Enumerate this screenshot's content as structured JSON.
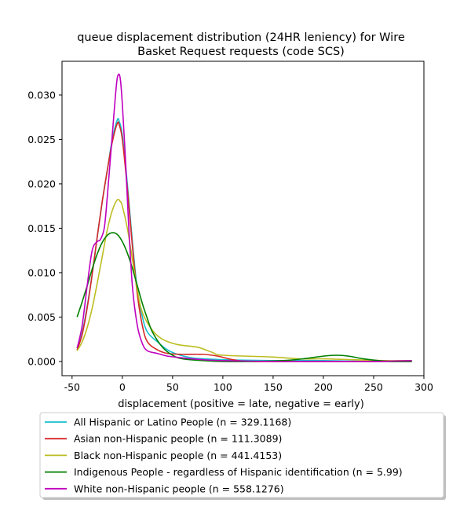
{
  "chart_data": {
    "type": "line",
    "title_lines": [
      "queue displacement distribution (24HR leniency) for Wire",
      "Basket Request  requests (code SCS)"
    ],
    "xlabel": "displacement (positive = late, negative = early)",
    "ylabel": "",
    "xlim": [
      -60,
      300
    ],
    "ylim": [
      -0.0016,
      0.0338
    ],
    "x_ticks": [
      -50,
      0,
      50,
      100,
      150,
      200,
      250,
      300
    ],
    "y_ticks": [
      0.0,
      0.005,
      0.01,
      0.015,
      0.02,
      0.025,
      0.03
    ],
    "y_tick_labels": [
      "0.000",
      "0.005",
      "0.010",
      "0.015",
      "0.020",
      "0.025",
      "0.030"
    ],
    "grid": false,
    "legend_position": "below",
    "series": [
      {
        "name": "All Hispanic or Latino People (n = 329.1168)",
        "color": "#17becf",
        "points": [
          [
            -45,
            0.0015
          ],
          [
            -40,
            0.0032
          ],
          [
            -35,
            0.0062
          ],
          [
            -30,
            0.0098
          ],
          [
            -25,
            0.014
          ],
          [
            -20,
            0.018
          ],
          [
            -15,
            0.0215
          ],
          [
            -10,
            0.025
          ],
          [
            -5,
            0.0272
          ],
          [
            -3,
            0.027
          ],
          [
            0,
            0.0255
          ],
          [
            5,
            0.02
          ],
          [
            10,
            0.0135
          ],
          [
            15,
            0.008
          ],
          [
            20,
            0.005
          ],
          [
            25,
            0.0033
          ],
          [
            35,
            0.0022
          ],
          [
            45,
            0.0013
          ],
          [
            55,
            0.0008
          ],
          [
            70,
            0.0004
          ],
          [
            100,
            0.0002
          ],
          [
            150,
            0.0001
          ],
          [
            200,
            0.0001
          ],
          [
            250,
            0.0
          ],
          [
            288,
            0.0
          ]
        ]
      },
      {
        "name": "Asian non-Hispanic people (n = 111.3089)",
        "color": "#d62728",
        "points": [
          [
            -45,
            0.0013
          ],
          [
            -40,
            0.003
          ],
          [
            -35,
            0.006
          ],
          [
            -30,
            0.0098
          ],
          [
            -25,
            0.014
          ],
          [
            -20,
            0.018
          ],
          [
            -15,
            0.0215
          ],
          [
            -10,
            0.0247
          ],
          [
            -5,
            0.0268
          ],
          [
            -3,
            0.0266
          ],
          [
            0,
            0.025
          ],
          [
            5,
            0.0195
          ],
          [
            10,
            0.013
          ],
          [
            15,
            0.0075
          ],
          [
            20,
            0.004
          ],
          [
            25,
            0.0022
          ],
          [
            35,
            0.0013
          ],
          [
            45,
            0.0009
          ],
          [
            60,
            0.0008
          ],
          [
            80,
            0.0008
          ],
          [
            95,
            0.0006
          ],
          [
            110,
            0.0002
          ],
          [
            130,
            0.0
          ],
          [
            200,
            0.0
          ],
          [
            288,
            0.0
          ]
        ]
      },
      {
        "name": "Black non-Hispanic people (n = 441.4153)",
        "color": "#bcbd22",
        "points": [
          [
            -45,
            0.0012
          ],
          [
            -40,
            0.0022
          ],
          [
            -35,
            0.0038
          ],
          [
            -30,
            0.006
          ],
          [
            -25,
            0.0088
          ],
          [
            -20,
            0.0118
          ],
          [
            -15,
            0.0148
          ],
          [
            -10,
            0.017
          ],
          [
            -5,
            0.0182
          ],
          [
            -2,
            0.018
          ],
          [
            0,
            0.0175
          ],
          [
            5,
            0.015
          ],
          [
            10,
            0.0115
          ],
          [
            15,
            0.008
          ],
          [
            20,
            0.0055
          ],
          [
            30,
            0.0035
          ],
          [
            40,
            0.0025
          ],
          [
            55,
            0.0019
          ],
          [
            75,
            0.0016
          ],
          [
            90,
            0.001
          ],
          [
            100,
            0.0007
          ],
          [
            150,
            0.0005
          ],
          [
            175,
            0.0003
          ],
          [
            200,
            0.0003
          ],
          [
            230,
            0.0002
          ],
          [
            260,
            0.0001
          ],
          [
            288,
            0.0001
          ]
        ]
      },
      {
        "name": "Indigenous People - regardless of Hispanic identification (n = 5.99)",
        "color": "#008000",
        "points": [
          [
            -45,
            0.005
          ],
          [
            -40,
            0.0067
          ],
          [
            -35,
            0.0085
          ],
          [
            -30,
            0.0104
          ],
          [
            -25,
            0.0121
          ],
          [
            -20,
            0.0134
          ],
          [
            -15,
            0.0142
          ],
          [
            -10,
            0.0145
          ],
          [
            -5,
            0.0143
          ],
          [
            0,
            0.0135
          ],
          [
            5,
            0.0122
          ],
          [
            10,
            0.0105
          ],
          [
            15,
            0.0085
          ],
          [
            20,
            0.0065
          ],
          [
            25,
            0.0048
          ],
          [
            30,
            0.0033
          ],
          [
            40,
            0.0016
          ],
          [
            50,
            0.0007
          ],
          [
            60,
            0.0003
          ],
          [
            80,
            0.0001
          ],
          [
            100,
            0.0
          ],
          [
            130,
            0.0
          ],
          [
            160,
            0.0001
          ],
          [
            180,
            0.0003
          ],
          [
            200,
            0.0006
          ],
          [
            213,
            0.0007
          ],
          [
            225,
            0.0006
          ],
          [
            240,
            0.0003
          ],
          [
            255,
            0.0001
          ],
          [
            270,
            0.0
          ],
          [
            288,
            0.0
          ]
        ]
      },
      {
        "name": "White non-Hispanic people (n = 558.1276)",
        "color": "#bf00bf",
        "points": [
          [
            -45,
            0.0015
          ],
          [
            -40,
            0.004
          ],
          [
            -35,
            0.0085
          ],
          [
            -30,
            0.0125
          ],
          [
            -25,
            0.0135
          ],
          [
            -22,
            0.0137
          ],
          [
            -18,
            0.015
          ],
          [
            -15,
            0.0185
          ],
          [
            -10,
            0.0255
          ],
          [
            -6,
            0.031
          ],
          [
            -4,
            0.0323
          ],
          [
            -2,
            0.0318
          ],
          [
            0,
            0.029
          ],
          [
            3,
            0.023
          ],
          [
            6,
            0.016
          ],
          [
            10,
            0.0085
          ],
          [
            15,
            0.004
          ],
          [
            20,
            0.002
          ],
          [
            25,
            0.0012
          ],
          [
            35,
            0.0009
          ],
          [
            45,
            0.0006
          ],
          [
            60,
            0.0004
          ],
          [
            80,
            0.0002
          ],
          [
            100,
            0.0001
          ],
          [
            150,
            0.0
          ],
          [
            200,
            0.0
          ],
          [
            250,
            0.0
          ],
          [
            288,
            0.0001
          ]
        ]
      }
    ]
  }
}
